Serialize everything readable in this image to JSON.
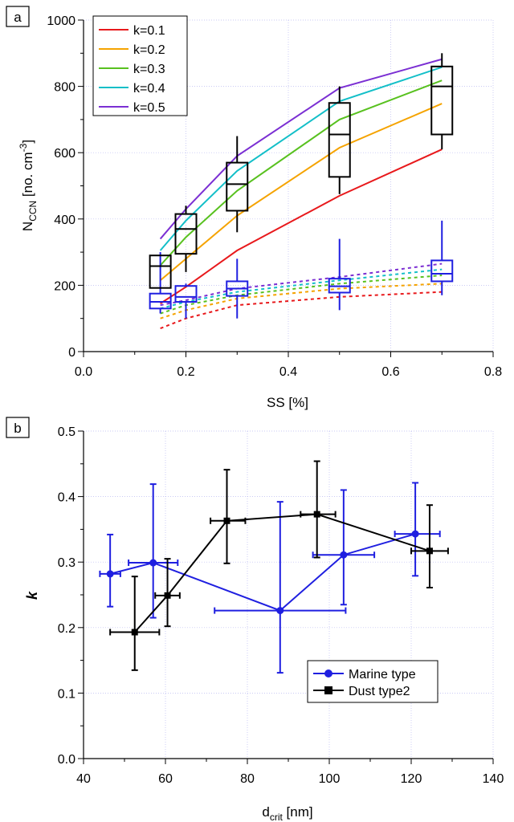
{
  "chart_data": [
    {
      "panel_label": "a",
      "type": "line",
      "xlabel": "SS [%]",
      "ylabel_main": "N",
      "ylabel_sub": "CCN",
      "ylabel_unit": " [no. cm",
      "ylabel_sup": "-3",
      "ylabel_close": "]",
      "xlim": [
        0.0,
        0.8
      ],
      "ylim": [
        0,
        1000
      ],
      "x_ticks": [
        0.0,
        0.2,
        0.4,
        0.6,
        0.8
      ],
      "x_tick_labels": [
        "0.0",
        "0.2",
        "0.4",
        "0.6",
        "0.8"
      ],
      "y_ticks": [
        0,
        200,
        400,
        600,
        800,
        1000
      ],
      "y_tick_labels": [
        "0",
        "200",
        "400",
        "600",
        "800",
        "1000"
      ],
      "grid": true,
      "legend_position": "top-left",
      "x": [
        0.15,
        0.2,
        0.3,
        0.5,
        0.7
      ],
      "series": [
        {
          "name": "k=0.1",
          "color": "#e8191c",
          "values": [
            145,
            195,
            305,
            470,
            610
          ],
          "dashed_values": [
            70,
            100,
            140,
            165,
            180
          ]
        },
        {
          "name": "k=0.2",
          "color": "#f5a300",
          "values": [
            215,
            280,
            410,
            615,
            748
          ],
          "dashed_values": [
            100,
            125,
            160,
            190,
            205
          ]
        },
        {
          "name": "k=0.3",
          "color": "#58c11f",
          "values": [
            260,
            345,
            485,
            700,
            818
          ],
          "dashed_values": [
            115,
            140,
            170,
            205,
            230
          ]
        },
        {
          "name": "k=0.4",
          "color": "#13bfc8",
          "values": [
            305,
            395,
            545,
            755,
            858
          ],
          "dashed_values": [
            130,
            150,
            180,
            215,
            248
          ]
        },
        {
          "name": "k=0.5",
          "color": "#7b2fd3",
          "values": [
            340,
            430,
            590,
            795,
            882
          ],
          "dashed_values": [
            140,
            155,
            190,
            225,
            265
          ]
        }
      ],
      "boxes_black": [
        {
          "x": 0.15,
          "whisker_low": 192,
          "q1": 192,
          "median": 258,
          "q3": 290,
          "whisker_high": 290
        },
        {
          "x": 0.2,
          "whisker_low": 240,
          "q1": 295,
          "median": 370,
          "q3": 415,
          "whisker_high": 440
        },
        {
          "x": 0.3,
          "whisker_low": 360,
          "q1": 425,
          "median": 505,
          "q3": 570,
          "whisker_high": 650
        },
        {
          "x": 0.5,
          "whisker_low": 475,
          "q1": 527,
          "median": 655,
          "q3": 750,
          "whisker_high": 800
        },
        {
          "x": 0.7,
          "whisker_low": 610,
          "q1": 655,
          "median": 800,
          "q3": 860,
          "whisker_high": 900
        }
      ],
      "boxes_blue": [
        {
          "x": 0.15,
          "whisker_low": 115,
          "q1": 130,
          "median": 150,
          "q3": 175,
          "whisker_high": 300
        },
        {
          "x": 0.2,
          "whisker_low": 100,
          "q1": 150,
          "median": 165,
          "q3": 198,
          "whisker_high": 205
        },
        {
          "x": 0.3,
          "whisker_low": 100,
          "q1": 168,
          "median": 190,
          "q3": 212,
          "whisker_high": 280
        },
        {
          "x": 0.5,
          "whisker_low": 125,
          "q1": 178,
          "median": 197,
          "q3": 220,
          "whisker_high": 340
        },
        {
          "x": 0.7,
          "whisker_low": 170,
          "q1": 212,
          "median": 235,
          "q3": 275,
          "whisker_high": 395
        }
      ],
      "box_colors": {
        "black": "#000000",
        "blue": "#1f1fe0"
      }
    },
    {
      "panel_label": "b",
      "type": "scatter",
      "xlabel_main": "d",
      "xlabel_sub": "crit",
      "xlabel_unit": " [nm]",
      "ylabel": "k",
      "xlim": [
        40,
        140
      ],
      "ylim": [
        0.0,
        0.5
      ],
      "x_ticks": [
        40,
        60,
        80,
        100,
        120,
        140
      ],
      "x_tick_labels": [
        "40",
        "60",
        "80",
        "100",
        "120",
        "140"
      ],
      "y_ticks": [
        0.0,
        0.1,
        0.2,
        0.3,
        0.4,
        0.5
      ],
      "y_tick_labels": [
        "0.0",
        "0.1",
        "0.2",
        "0.3",
        "0.4",
        "0.5"
      ],
      "grid": true,
      "legend_position": "bottom-right",
      "series": [
        {
          "name": "Marine type",
          "color": "#1f1fe0",
          "marker": "circle",
          "points": [
            {
              "x": 46.5,
              "y": 0.282,
              "xerr": [
                44,
                49
              ],
              "yerr": [
                0.232,
                0.342
              ]
            },
            {
              "x": 57,
              "y": 0.299,
              "xerr": [
                51,
                63
              ],
              "yerr": [
                0.215,
                0.419
              ]
            },
            {
              "x": 88,
              "y": 0.226,
              "xerr": [
                72,
                104
              ],
              "yerr": [
                0.131,
                0.392
              ]
            },
            {
              "x": 103.5,
              "y": 0.311,
              "xerr": [
                96,
                111
              ],
              "yerr": [
                0.235,
                0.41
              ]
            },
            {
              "x": 121,
              "y": 0.343,
              "xerr": [
                116,
                127
              ],
              "yerr": [
                0.279,
                0.421
              ]
            }
          ]
        },
        {
          "name": "Dust type2",
          "color": "#000000",
          "marker": "square",
          "points": [
            {
              "x": 52.5,
              "y": 0.193,
              "xerr": [
                46.5,
                58.5
              ],
              "yerr": [
                0.135,
                0.278
              ]
            },
            {
              "x": 60.5,
              "y": 0.249,
              "xerr": [
                57.5,
                63.5
              ],
              "yerr": [
                0.202,
                0.305
              ]
            },
            {
              "x": 75,
              "y": 0.363,
              "xerr": [
                71,
                79.5
              ],
              "yerr": [
                0.298,
                0.441
              ]
            },
            {
              "x": 97,
              "y": 0.373,
              "xerr": [
                93,
                101.5
              ],
              "yerr": [
                0.307,
                0.454
              ]
            },
            {
              "x": 124.5,
              "y": 0.317,
              "xerr": [
                120,
                129
              ],
              "yerr": [
                0.261,
                0.387
              ]
            }
          ]
        }
      ]
    }
  ]
}
